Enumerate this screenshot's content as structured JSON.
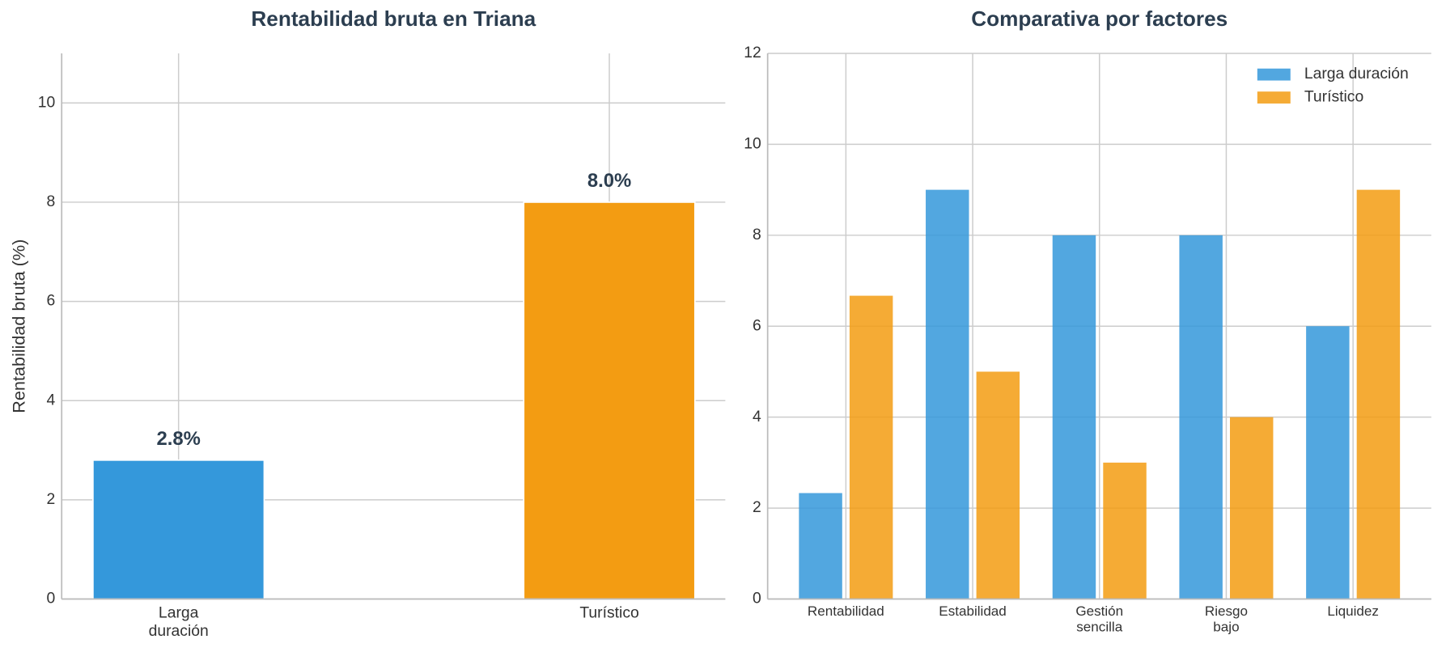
{
  "chart_data": [
    {
      "type": "bar",
      "title": "Rentabilidad bruta en Triana",
      "y_label": "Rentabilidad bruta (%)",
      "categories": [
        "Larga\nduración",
        "Turístico"
      ],
      "values": [
        2.8,
        8.0
      ],
      "value_labels": [
        "2.8%",
        "8.0%"
      ],
      "colors": [
        "#3498db",
        "#f39c12"
      ],
      "ylim": [
        0,
        11
      ],
      "yticks": [
        0,
        2,
        4,
        6,
        8,
        10
      ],
      "grid": true
    },
    {
      "type": "grouped_bar",
      "title": "Comparativa por factores",
      "categories": [
        "Rentabilidad",
        "Estabilidad",
        "Gestión\nsencilla",
        "Riesgo\nbajo",
        "Liquidez"
      ],
      "series": [
        {
          "name": "Larga duración",
          "color": "#3498db",
          "values": [
            2.33,
            9,
            8,
            8,
            6
          ]
        },
        {
          "name": "Turístico",
          "color": "#f39c12",
          "values": [
            6.67,
            5,
            3,
            4,
            9
          ]
        }
      ],
      "ylim": [
        0,
        12
      ],
      "yticks": [
        0,
        2,
        4,
        6,
        8,
        10,
        12
      ],
      "grid": true,
      "legend": "upper right"
    }
  ]
}
